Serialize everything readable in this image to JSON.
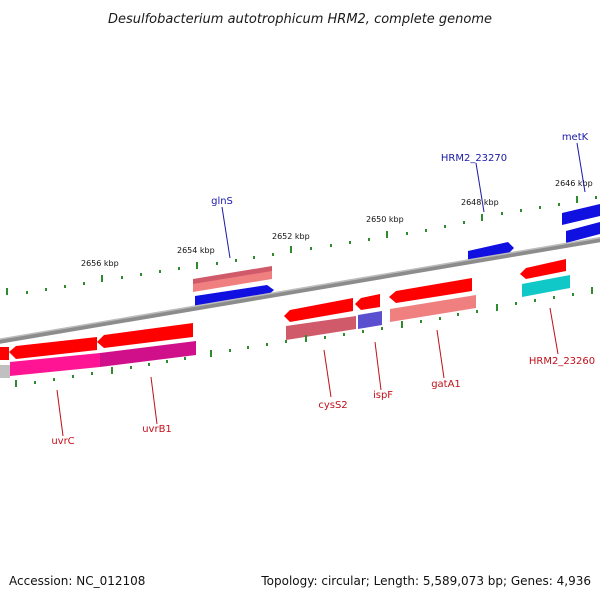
{
  "title": "Desulfobacterium autotrophicum HRM2, complete genome",
  "footer": {
    "accession": "Accession: NC_012108",
    "summary": "Topology: circular; Length: 5,589,073 bp; Genes: 4,936"
  },
  "colors": {
    "backbone": "#8c8c8c",
    "tick": "#2e8b2e",
    "blue_label": "#1a1aa8",
    "red_label": "#c0101a",
    "gene_red": "#ff0000",
    "gene_pink": "#f08080",
    "gene_blue": "#1010e0",
    "gene_magenta": "#e0109a",
    "gene_cyan": "#10c8c8",
    "gene_purple": "#5a4fcf",
    "gene_dark_pink": "#c05a6a"
  },
  "kbp_labels": [
    "2656 kbp",
    "2654 kbp",
    "2652 kbp",
    "2650 kbp",
    "2648 kbp",
    "2646 kbp"
  ],
  "gene_labels_outer": [
    "glnS",
    "HRM2_23270",
    "metK"
  ],
  "gene_labels_inner": [
    "uvrC",
    "uvrB1",
    "cysS2",
    "ispF",
    "gatA1",
    "HRM2_23260"
  ]
}
